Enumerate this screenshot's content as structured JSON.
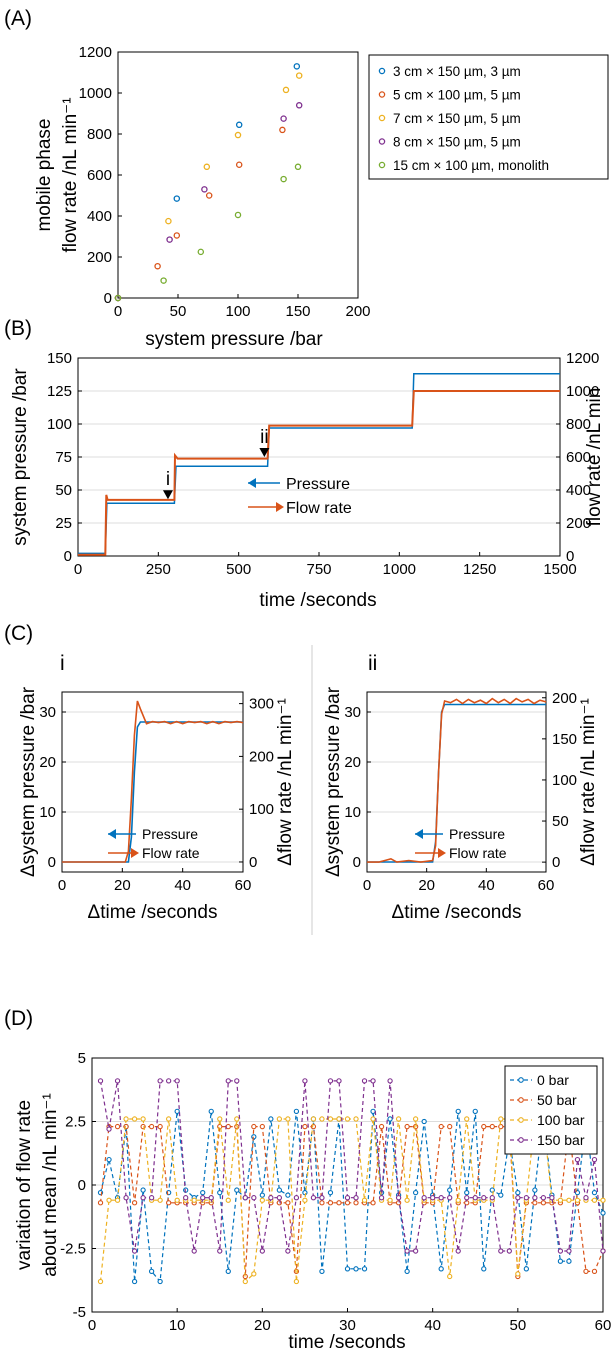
{
  "colors": {
    "c1": "#0072BD",
    "c2": "#D95319",
    "c3": "#EDB120",
    "c4": "#7E2F8E",
    "c5": "#77AC30"
  },
  "panels": {
    "a": "(A)",
    "b": "(B)",
    "c": "(C)",
    "d": "(D)",
    "ci": "i",
    "cii": "ii"
  },
  "chart_data": [
    {
      "id": "A",
      "type": "scatter",
      "xlabel": "system pressure /bar",
      "ylabel_lines": [
        "mobile phase",
        "flow rate /nL min⁻¹"
      ],
      "xlim": [
        0,
        200
      ],
      "ylim": [
        0,
        1200
      ],
      "xticks": [
        0,
        50,
        100,
        150,
        200
      ],
      "yticks": [
        0,
        200,
        400,
        600,
        800,
        1000,
        1200
      ],
      "grid": false,
      "legend_position": "outside-right",
      "series": [
        {
          "name": "3 cm × 150 µm, 3 µm",
          "color": "#0072BD",
          "points": [
            [
              0,
              0
            ],
            [
              49,
              485
            ],
            [
              101,
              845
            ],
            [
              149,
              1130
            ]
          ]
        },
        {
          "name": "5 cm × 100 µm, 5 µm",
          "color": "#D95319",
          "points": [
            [
              0,
              0
            ],
            [
              33,
              155
            ],
            [
              49,
              305
            ],
            [
              76,
              500
            ],
            [
              101,
              650
            ],
            [
              137,
              820
            ]
          ]
        },
        {
          "name": "7 cm × 150 µm, 5 µm",
          "color": "#EDB120",
          "points": [
            [
              0,
              0
            ],
            [
              42,
              375
            ],
            [
              74,
              640
            ],
            [
              100,
              795
            ],
            [
              140,
              1015
            ],
            [
              151,
              1085
            ]
          ]
        },
        {
          "name": "8 cm × 150 µm, 5 µm",
          "color": "#7E2F8E",
          "points": [
            [
              0,
              0
            ],
            [
              43,
              285
            ],
            [
              72,
              530
            ],
            [
              138,
              875
            ],
            [
              151,
              940
            ]
          ]
        },
        {
          "name": "15 cm × 100 µm, monolith",
          "color": "#77AC30",
          "points": [
            [
              0,
              0
            ],
            [
              38,
              85
            ],
            [
              69,
              225
            ],
            [
              100,
              405
            ],
            [
              138,
              580
            ],
            [
              150,
              640
            ]
          ]
        }
      ]
    },
    {
      "id": "B",
      "type": "line",
      "xlabel": "time /seconds",
      "ylabel_left": "system pressure /bar",
      "ylabel_right": "flow rate /nL min",
      "xlim": [
        0,
        1500
      ],
      "ylim_left": [
        0,
        150
      ],
      "ylim_right": [
        0,
        1200
      ],
      "xticks": [
        0,
        250,
        500,
        750,
        1000,
        1250,
        1500
      ],
      "yticks_left": [
        0,
        25,
        50,
        75,
        100,
        125,
        150
      ],
      "yticks_right": [
        0,
        200,
        400,
        600,
        800,
        1000,
        1200
      ],
      "grid": true,
      "legend_position": "center",
      "series": [
        {
          "name": "Pressure",
          "axis": "left",
          "color": "#0072BD",
          "x": [
            0,
            85,
            90,
            300,
            305,
            590,
            595,
            1040,
            1045,
            1500
          ],
          "y": [
            2,
            2,
            40,
            40,
            68,
            68,
            97,
            97,
            138,
            138
          ]
        },
        {
          "name": "Flow rate",
          "axis": "right",
          "color": "#D95319",
          "x": [
            0,
            85,
            88,
            92,
            300,
            302,
            310,
            590,
            595,
            1040,
            1045,
            1500
          ],
          "y": [
            8,
            8,
            370,
            340,
            340,
            610,
            590,
            590,
            790,
            790,
            1000,
            1000
          ]
        }
      ],
      "annotations": [
        {
          "text": "i",
          "x": 280,
          "y": 40
        },
        {
          "text": "ii",
          "x": 580,
          "y": 72
        }
      ]
    },
    {
      "id": "C-i",
      "type": "line",
      "xlabel": "Δtime /seconds",
      "ylabel_left": "Δsystem pressure /bar",
      "ylabel_right": "Δflow rate /nL min⁻¹",
      "xlim": [
        0,
        60
      ],
      "ylim_left": [
        -2,
        34
      ],
      "ylim_right": [
        -19,
        322
      ],
      "xticks": [
        0,
        20,
        40,
        60
      ],
      "yticks_left": [
        0,
        10,
        20,
        30
      ],
      "yticks_right": [
        0,
        100,
        200,
        300
      ],
      "grid": true,
      "series": [
        {
          "name": "Pressure",
          "axis": "left",
          "color": "#0072BD",
          "x": [
            0,
            22,
            23,
            24,
            25,
            26,
            60
          ],
          "y": [
            0,
            0,
            5,
            18,
            27,
            28,
            28
          ]
        },
        {
          "name": "Flow rate",
          "axis": "right",
          "color": "#D95319",
          "x": [
            0,
            21,
            22,
            23,
            24,
            25,
            26,
            28,
            30,
            32,
            34,
            36,
            38,
            40,
            42,
            44,
            46,
            48,
            50,
            52,
            54,
            56,
            58,
            60
          ],
          "y": [
            0,
            0,
            20,
            120,
            240,
            305,
            290,
            262,
            266,
            264,
            266,
            262,
            266,
            262,
            266,
            264,
            266,
            262,
            266,
            262,
            266,
            264,
            266,
            264
          ]
        }
      ]
    },
    {
      "id": "C-ii",
      "type": "line",
      "xlabel": "Δtime /seconds",
      "ylabel_left": "Δsystem pressure /bar",
      "ylabel_right": "Δflow rate /nL min⁻¹",
      "xlim": [
        0,
        60
      ],
      "ylim_left": [
        -2,
        34
      ],
      "ylim_right": [
        -12,
        207
      ],
      "xticks": [
        0,
        20,
        40,
        60
      ],
      "yticks_left": [
        0,
        10,
        20,
        30
      ],
      "yticks_right": [
        0,
        50,
        100,
        150,
        200
      ],
      "grid": true,
      "series": [
        {
          "name": "Pressure",
          "axis": "left",
          "color": "#0072BD",
          "x": [
            0,
            22,
            23,
            24,
            25,
            26,
            60
          ],
          "y": [
            0,
            0,
            4,
            18,
            30,
            31.5,
            31.5
          ]
        },
        {
          "name": "Flow rate",
          "axis": "right",
          "color": "#D95319",
          "x": [
            0,
            4,
            8,
            10,
            14,
            18,
            22,
            23,
            24,
            25,
            26,
            28,
            30,
            32,
            34,
            36,
            38,
            40,
            42,
            44,
            46,
            48,
            50,
            52,
            54,
            56,
            58,
            60
          ],
          "y": [
            0,
            0,
            4,
            0,
            2,
            0,
            2,
            20,
            110,
            180,
            196,
            194,
            198,
            193,
            198,
            194,
            197,
            193,
            199,
            194,
            198,
            193,
            199,
            195,
            198,
            193,
            197,
            195
          ]
        }
      ]
    },
    {
      "id": "D",
      "type": "line",
      "xlabel": "time /seconds",
      "ylabel_lines": [
        "variation of flow rate",
        "about mean /nL min⁻¹"
      ],
      "xlim": [
        0,
        60
      ],
      "ylim": [
        -5,
        5
      ],
      "xticks": [
        0,
        10,
        20,
        30,
        40,
        50,
        60
      ],
      "yticks": [
        -5,
        -2.5,
        0,
        2.5,
        5
      ],
      "ytick_labels": [
        "-5",
        "-2.5",
        "0",
        "2.5",
        "5"
      ],
      "grid": true,
      "line_style": "dashed-with-markers",
      "legend_position": "top-right",
      "series": [
        {
          "name": "0 bar",
          "color": "#0072BD",
          "x": [
            1,
            2,
            3,
            4,
            5,
            6,
            7,
            8,
            9,
            10,
            11,
            12,
            13,
            14,
            15,
            16,
            17,
            18,
            19,
            20,
            21,
            22,
            23,
            24,
            25,
            26,
            27,
            28,
            29,
            30,
            31,
            32,
            33,
            34,
            35,
            36,
            37,
            38,
            39,
            40,
            41,
            42,
            43,
            44,
            45,
            46,
            47,
            48,
            49,
            50,
            51,
            52,
            53,
            54,
            55,
            56,
            57,
            58,
            59,
            60
          ],
          "y": [
            -0.3,
            1.0,
            -0.5,
            2.3,
            -3.8,
            -0.2,
            -3.4,
            -3.8,
            -0.3,
            2.9,
            -0.2,
            -0.5,
            -0.3,
            2.9,
            -0.3,
            -3.4,
            -0.2,
            -0.5,
            1.9,
            -0.4,
            2.6,
            -0.2,
            -0.4,
            2.9,
            -0.3,
            2.6,
            -3.4,
            -0.3,
            2.6,
            -3.3,
            -3.3,
            -3.3,
            2.9,
            -0.3,
            2.6,
            -0.4,
            -3.4,
            -0.3,
            2.5,
            -0.4,
            -3.3,
            -0.2,
            2.9,
            -0.3,
            2.9,
            -3.3,
            -0.2,
            -0.4,
            1.8,
            -0.3,
            -3.3,
            -0.2,
            2.8,
            -0.4,
            -3.0,
            -3.0,
            -0.3,
            2.5,
            -0.3,
            -1.1
          ]
        },
        {
          "name": "50 bar",
          "color": "#D95319",
          "x": [
            1,
            2,
            3,
            4,
            5,
            6,
            7,
            8,
            9,
            10,
            11,
            12,
            13,
            14,
            15,
            16,
            17,
            18,
            19,
            20,
            21,
            22,
            23,
            24,
            25,
            26,
            27,
            28,
            29,
            30,
            31,
            32,
            33,
            34,
            35,
            36,
            37,
            38,
            39,
            40,
            41,
            42,
            43,
            44,
            45,
            46,
            47,
            48,
            49,
            50,
            51,
            52,
            53,
            54,
            55,
            56,
            57,
            58,
            59,
            60
          ],
          "y": [
            -0.7,
            2.3,
            2.3,
            2.3,
            -0.7,
            2.3,
            2.3,
            2.3,
            -0.7,
            -0.7,
            -0.7,
            -0.7,
            -0.7,
            -0.7,
            2.3,
            2.3,
            2.3,
            -3.6,
            2.3,
            2.3,
            -0.7,
            -0.7,
            -0.7,
            -3.4,
            2.3,
            2.3,
            -0.7,
            -0.7,
            -0.7,
            -0.7,
            -0.7,
            -0.7,
            -0.7,
            2.3,
            -0.7,
            -0.7,
            2.3,
            2.3,
            -0.7,
            -0.7,
            2.3,
            2.3,
            -0.7,
            -0.7,
            -0.7,
            2.3,
            2.3,
            2.3,
            2.3,
            -3.6,
            -0.7,
            -0.7,
            -0.7,
            -0.7,
            -0.7,
            2.3,
            -0.7,
            -3.4,
            -3.4,
            -2.6
          ]
        },
        {
          "name": "100 bar",
          "color": "#EDB120",
          "x": [
            1,
            2,
            3,
            4,
            5,
            6,
            7,
            8,
            9,
            10,
            11,
            12,
            13,
            14,
            15,
            16,
            17,
            18,
            19,
            20,
            21,
            22,
            23,
            24,
            25,
            26,
            27,
            28,
            29,
            30,
            31,
            32,
            33,
            34,
            35,
            36,
            37,
            38,
            39,
            40,
            41,
            42,
            43,
            44,
            45,
            46,
            47,
            48,
            49,
            50,
            51,
            52,
            53,
            54,
            55,
            56,
            57,
            58,
            59,
            60
          ],
          "y": [
            -3.8,
            -0.6,
            -0.6,
            2.6,
            2.6,
            2.6,
            -0.6,
            -0.6,
            2.6,
            -0.6,
            -0.6,
            -0.6,
            -0.6,
            -0.6,
            2.6,
            -0.6,
            2.6,
            -3.8,
            -3.5,
            -0.6,
            -0.6,
            2.6,
            2.6,
            -3.8,
            -0.6,
            2.6,
            2.6,
            2.6,
            2.6,
            2.6,
            2.6,
            -0.6,
            2.6,
            -0.6,
            -0.6,
            2.6,
            -0.6,
            2.6,
            -0.6,
            -0.6,
            -0.6,
            -3.6,
            -0.6,
            2.6,
            -0.6,
            -0.6,
            -0.6,
            2.6,
            2.6,
            -3.5,
            -0.6,
            2.6,
            2.6,
            -0.6,
            -0.6,
            -0.6,
            -0.6,
            -0.6,
            -0.6,
            -0.6
          ]
        },
        {
          "name": "150 bar",
          "color": "#7E2F8E",
          "x": [
            1,
            2,
            3,
            4,
            5,
            6,
            7,
            8,
            9,
            10,
            11,
            12,
            13,
            14,
            15,
            16,
            17,
            18,
            19,
            20,
            21,
            22,
            23,
            24,
            25,
            26,
            27,
            28,
            29,
            30,
            31,
            32,
            33,
            34,
            35,
            36,
            37,
            38,
            39,
            40,
            41,
            42,
            43,
            44,
            45,
            46,
            47,
            48,
            49,
            50,
            51,
            52,
            53,
            54,
            55,
            56,
            57,
            58,
            59,
            60
          ],
          "y": [
            4.1,
            2.2,
            4.1,
            -0.5,
            -2.6,
            -0.5,
            -0.5,
            4.1,
            4.1,
            4.1,
            -0.5,
            -2.6,
            -0.5,
            -0.5,
            -2.6,
            4.1,
            4.1,
            -0.5,
            -0.5,
            -2.6,
            -0.5,
            -0.5,
            -2.6,
            -0.5,
            4.1,
            -0.5,
            -0.5,
            4.1,
            4.1,
            -0.5,
            -0.5,
            4.1,
            4.1,
            -0.5,
            4.1,
            -0.5,
            -2.6,
            -2.6,
            -0.5,
            -0.5,
            -0.5,
            -0.5,
            -2.6,
            -0.5,
            -0.5,
            -0.5,
            -0.5,
            -2.6,
            -2.6,
            -0.5,
            -0.5,
            -0.5,
            -0.5,
            -0.5,
            -2.6,
            -2.6,
            1.0,
            -0.5,
            1.0,
            -2.6
          ]
        }
      ]
    }
  ]
}
